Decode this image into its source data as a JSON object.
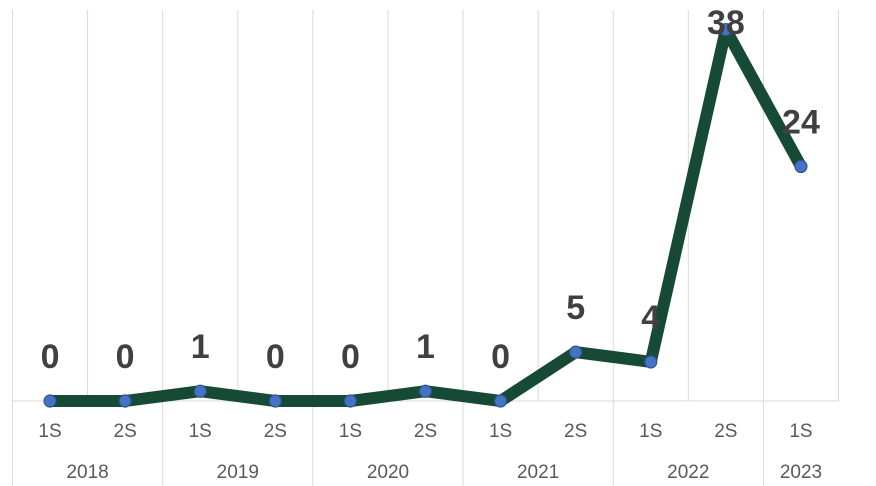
{
  "chart_data": {
    "type": "line",
    "categories": [
      "1S",
      "2S",
      "1S",
      "2S",
      "1S",
      "2S",
      "1S",
      "2S",
      "1S",
      "2S",
      "1S"
    ],
    "groups": [
      {
        "label": "2018",
        "span": 2
      },
      {
        "label": "2019",
        "span": 2
      },
      {
        "label": "2020",
        "span": 2
      },
      {
        "label": "2021",
        "span": 2
      },
      {
        "label": "2022",
        "span": 2
      },
      {
        "label": "2023",
        "span": 1
      }
    ],
    "values": [
      0,
      0,
      1,
      0,
      0,
      1,
      0,
      5,
      4,
      38,
      24
    ],
    "color": "#174a35",
    "marker_color": "#4472c4",
    "ylim": [
      0,
      40
    ],
    "grid": true,
    "data_labels": true
  }
}
